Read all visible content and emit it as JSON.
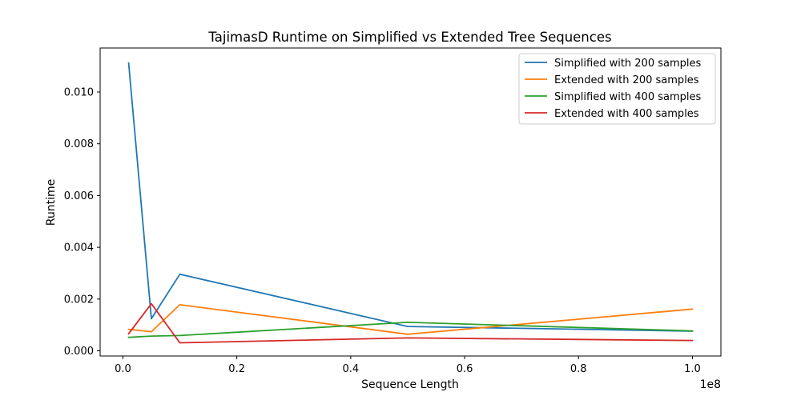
{
  "chart_data": {
    "type": "line",
    "title": "TajimasD Runtime on Simplified vs Extended Tree Sequences",
    "xlabel": "Sequence Length",
    "ylabel": "Runtime",
    "x_offset_label": "1e8",
    "x": [
      1000000,
      5000000,
      10000000,
      50000000,
      100000000
    ],
    "xlim": [
      -4000000,
      105000000
    ],
    "ylim": [
      -0.0002,
      0.0117
    ],
    "x_ticks": [
      0,
      20000000,
      40000000,
      60000000,
      80000000,
      100000000
    ],
    "x_tick_labels": [
      "0.0",
      "0.2",
      "0.4",
      "0.6",
      "0.8",
      "1.0"
    ],
    "y_ticks": [
      0,
      0.002,
      0.004,
      0.006,
      0.008,
      0.01
    ],
    "y_tick_labels": [
      "0.000",
      "0.002",
      "0.004",
      "0.006",
      "0.008",
      "0.010"
    ],
    "grid": false,
    "legend_position": "top-right",
    "series": [
      {
        "name": "Simplified with 200 samples",
        "color": "#1f77b4",
        "values": [
          0.01112,
          0.00124,
          0.00296,
          0.00094,
          0.00076
        ]
      },
      {
        "name": "Extended with 200 samples",
        "color": "#ff7f0e",
        "values": [
          0.00083,
          0.00074,
          0.00178,
          0.00064,
          0.00161
        ]
      },
      {
        "name": "Simplified with 400 samples",
        "color": "#2ca02c",
        "values": [
          0.00052,
          0.00057,
          0.00059,
          0.0011,
          0.00077
        ]
      },
      {
        "name": "Extended with 400 samples",
        "color": "#d62728",
        "values": [
          0.00066,
          0.00182,
          0.00031,
          0.0005,
          0.0004
        ]
      }
    ]
  }
}
